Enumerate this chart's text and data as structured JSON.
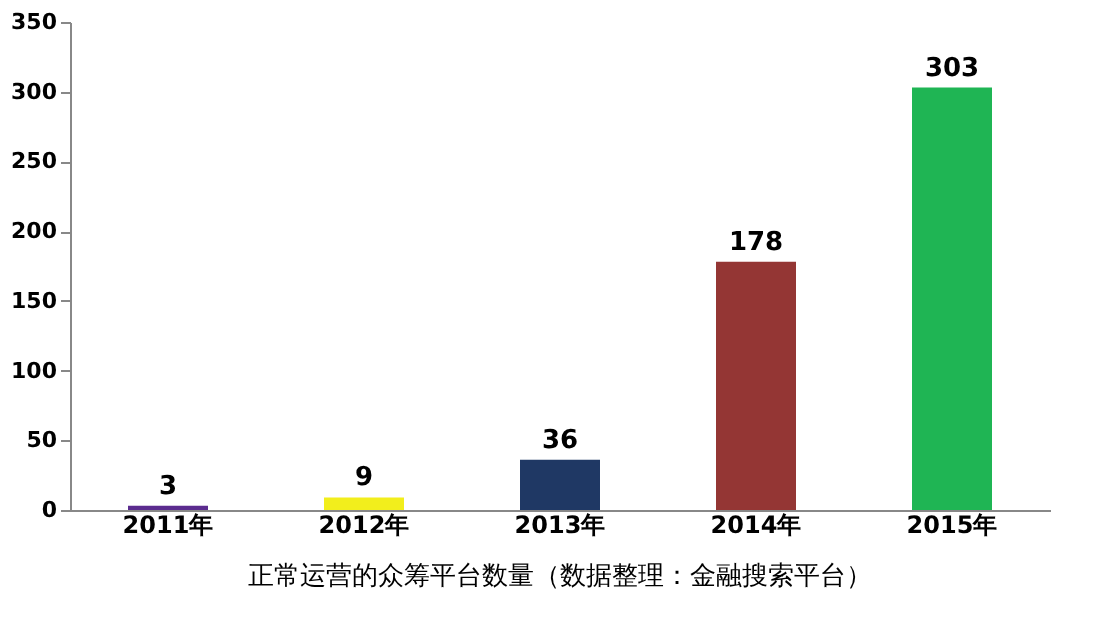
{
  "chart_data": {
    "type": "bar",
    "categories": [
      "2011年",
      "2012年",
      "2013年",
      "2014年",
      "2015年"
    ],
    "values": [
      3,
      9,
      36,
      178,
      303
    ],
    "colors": [
      "#5b2c8f",
      "#f2ee1c",
      "#1f3864",
      "#943634",
      "#1fb554"
    ],
    "ylim": [
      0,
      350
    ],
    "yticks": [
      0,
      50,
      100,
      150,
      200,
      250,
      300,
      350
    ],
    "grid": false,
    "data_labels": true,
    "annotations": [
      "正常运营的众筹平台数量（数据整理：金融搜索平台）"
    ]
  }
}
